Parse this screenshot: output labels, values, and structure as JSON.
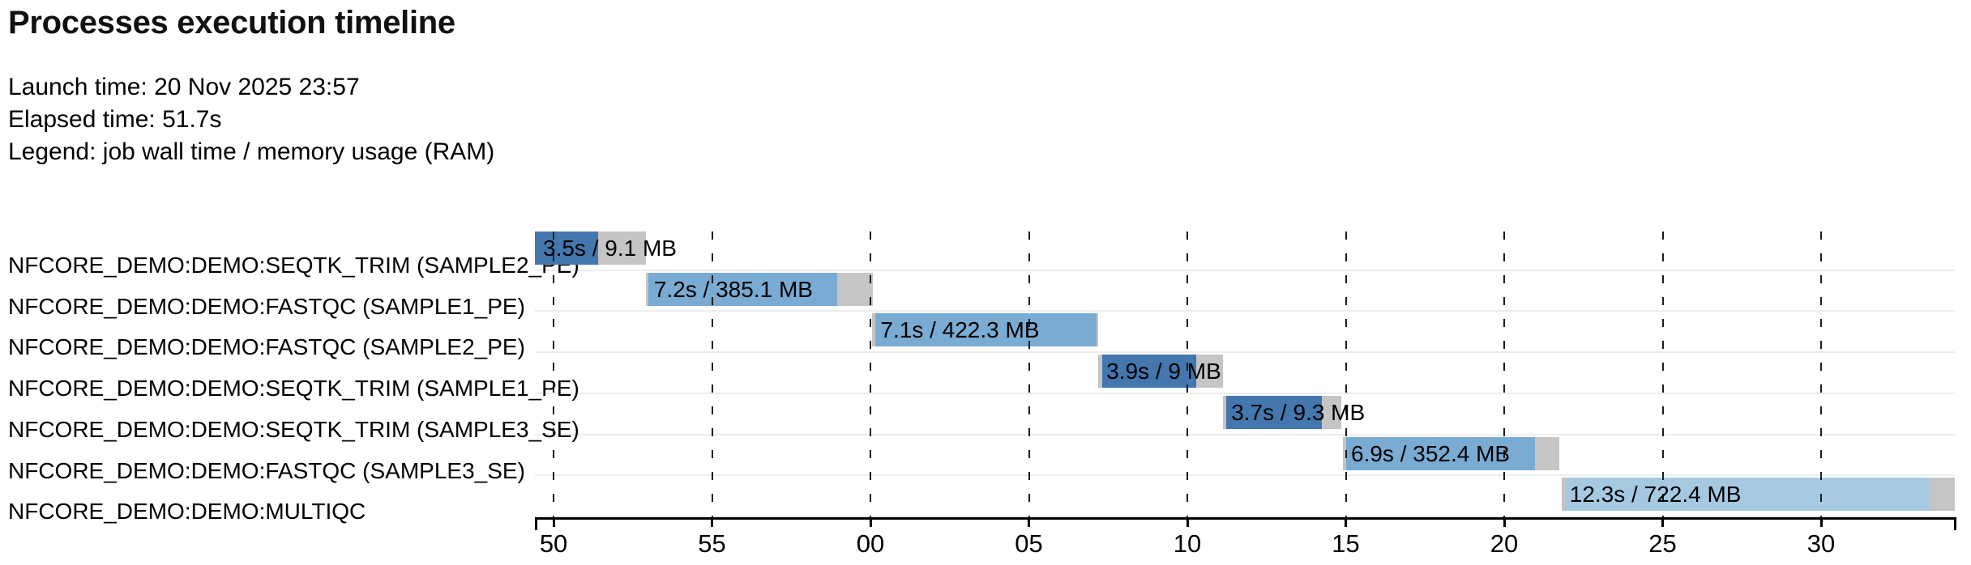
{
  "page": {
    "title": "Processes execution timeline"
  },
  "meta": {
    "launch_label": "Launch time:",
    "launch_value": "20 Nov 2025 23:57",
    "launch_text": "Launch time: 20 Nov 2025 23:57",
    "elapsed_label": "Elapsed time:",
    "elapsed_value": "51.7s",
    "elapsed_text": "Elapsed time: 51.7s",
    "legend_label": "Legend:",
    "legend_value": "job wall time / memory usage (RAM)",
    "legend_text": "Legend: job wall time / memory usage (RAM)"
  },
  "chart_data": {
    "type": "bar",
    "subtype": "gantt-timeline",
    "title": "Processes execution timeline",
    "orientation": "horizontal",
    "grid": "dashed-vertical",
    "x_axis": {
      "unit": "seconds (clock mm:ss tick labels, 5 s interval)",
      "range_s": [
        0,
        44.81
      ],
      "ticks": [
        {
          "t": 0.59,
          "label": "50"
        },
        {
          "t": 5.59,
          "label": "55"
        },
        {
          "t": 10.59,
          "label": "00"
        },
        {
          "t": 15.59,
          "label": "05"
        },
        {
          "t": 20.59,
          "label": "10"
        },
        {
          "t": 25.59,
          "label": "15"
        },
        {
          "t": 30.59,
          "label": "20"
        },
        {
          "t": 35.59,
          "label": "25"
        },
        {
          "t": 40.59,
          "label": "30"
        }
      ]
    },
    "palette": {
      "seqtk_trim_run": "#4377ad",
      "fastqc_run": "#7aabd2",
      "multiqc_run": "#a6c9e2",
      "overhead_gray": "#c5c5c5"
    },
    "processes": [
      {
        "name": "NFCORE_DEMO:DEMO:SEQTK_TRIM (SAMPLE2_PE)",
        "label": "3.5s / 9.1 MB",
        "wall_time": "3.5s",
        "memory": "9.1 MB",
        "start_s": 0.0,
        "color": "#4377ad",
        "segments": [
          {
            "kind": "run",
            "dur": 2.0
          },
          {
            "kind": "overhead",
            "dur": 1.5
          }
        ]
      },
      {
        "name": "NFCORE_DEMO:DEMO:FASTQC (SAMPLE1_PE)",
        "label": "7.2s / 385.1 MB",
        "wall_time": "7.2s",
        "memory": "385.1 MB",
        "start_s": 3.5,
        "color": "#7aabd2",
        "segments": [
          {
            "kind": "overhead",
            "dur": 0.08
          },
          {
            "kind": "run",
            "dur": 5.96
          },
          {
            "kind": "overhead",
            "dur": 1.12
          }
        ]
      },
      {
        "name": "NFCORE_DEMO:DEMO:FASTQC (SAMPLE2_PE)",
        "label": "7.1s / 422.3 MB",
        "wall_time": "7.1s",
        "memory": "422.3 MB",
        "start_s": 10.65,
        "color": "#7aabd2",
        "segments": [
          {
            "kind": "overhead",
            "dur": 0.08
          },
          {
            "kind": "run",
            "dur": 7.0
          },
          {
            "kind": "overhead",
            "dur": 0.05
          }
        ]
      },
      {
        "name": "NFCORE_DEMO:DEMO:SEQTK_TRIM (SAMPLE1_PE)",
        "label": "3.9s / 9 MB",
        "wall_time": "3.9s",
        "memory": "9 MB",
        "start_s": 17.78,
        "color": "#4377ad",
        "segments": [
          {
            "kind": "overhead",
            "dur": 0.13
          },
          {
            "kind": "run",
            "dur": 2.97
          },
          {
            "kind": "overhead",
            "dur": 0.84
          }
        ]
      },
      {
        "name": "NFCORE_DEMO:DEMO:SEQTK_TRIM (SAMPLE3_SE)",
        "label": "3.7s / 9.3 MB",
        "wall_time": "3.7s",
        "memory": "9.3 MB",
        "start_s": 21.72,
        "color": "#4377ad",
        "segments": [
          {
            "kind": "overhead",
            "dur": 0.1
          },
          {
            "kind": "run",
            "dur": 3.02
          },
          {
            "kind": "overhead",
            "dur": 0.61
          }
        ]
      },
      {
        "name": "NFCORE_DEMO:DEMO:FASTQC (SAMPLE3_SE)",
        "label": "6.9s / 352.4 MB",
        "wall_time": "6.9s",
        "memory": "352.4 MB",
        "start_s": 25.5,
        "color": "#7aabd2",
        "segments": [
          {
            "kind": "overhead",
            "dur": 0.1
          },
          {
            "kind": "run",
            "dur": 5.96
          },
          {
            "kind": "overhead",
            "dur": 0.77
          }
        ]
      },
      {
        "name": "NFCORE_DEMO:DEMO:MULTIQC",
        "label": "12.3s / 722.4 MB",
        "wall_time": "12.3s",
        "memory": "722.4 MB",
        "start_s": 32.4,
        "color": "#a6c9e2",
        "segments": [
          {
            "kind": "overhead",
            "dur": 0.1
          },
          {
            "kind": "run",
            "dur": 11.49
          },
          {
            "kind": "overhead",
            "dur": 0.82
          }
        ]
      }
    ]
  }
}
